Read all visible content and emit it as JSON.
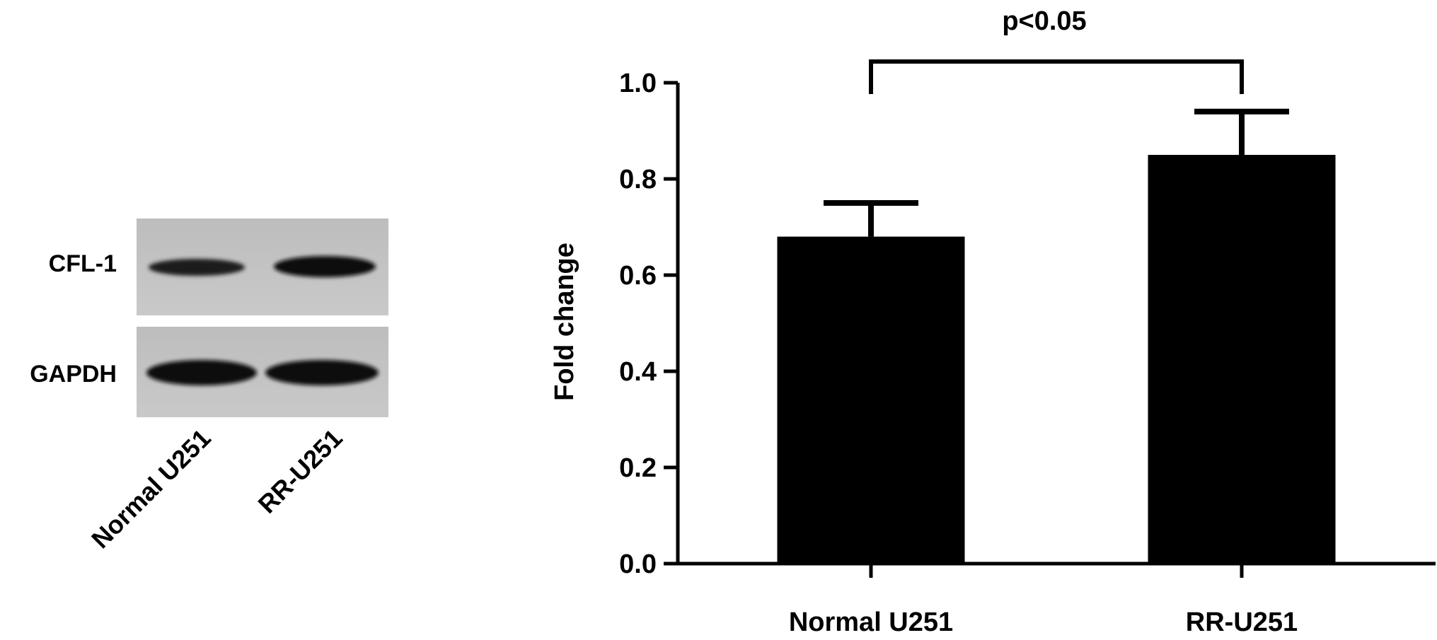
{
  "blot": {
    "rows": [
      {
        "label": "CFL-1"
      },
      {
        "label": "GAPDH"
      }
    ],
    "lanes": [
      {
        "label": "Normal U251"
      },
      {
        "label": "RR-U251"
      }
    ]
  },
  "chart_data": {
    "type": "bar",
    "title": "",
    "xlabel": "",
    "ylabel": "Fold change",
    "categories": [
      "Normal U251",
      "RR-U251"
    ],
    "values": [
      0.68,
      0.85
    ],
    "errors": [
      0.07,
      0.09
    ],
    "ylim": [
      0.0,
      1.0
    ],
    "yticks": [
      "0.0",
      "0.2",
      "0.4",
      "0.6",
      "0.8",
      "1.0"
    ],
    "bar_color": "#000000",
    "grid": false,
    "legend": "none",
    "annotation": "p<0.05"
  }
}
